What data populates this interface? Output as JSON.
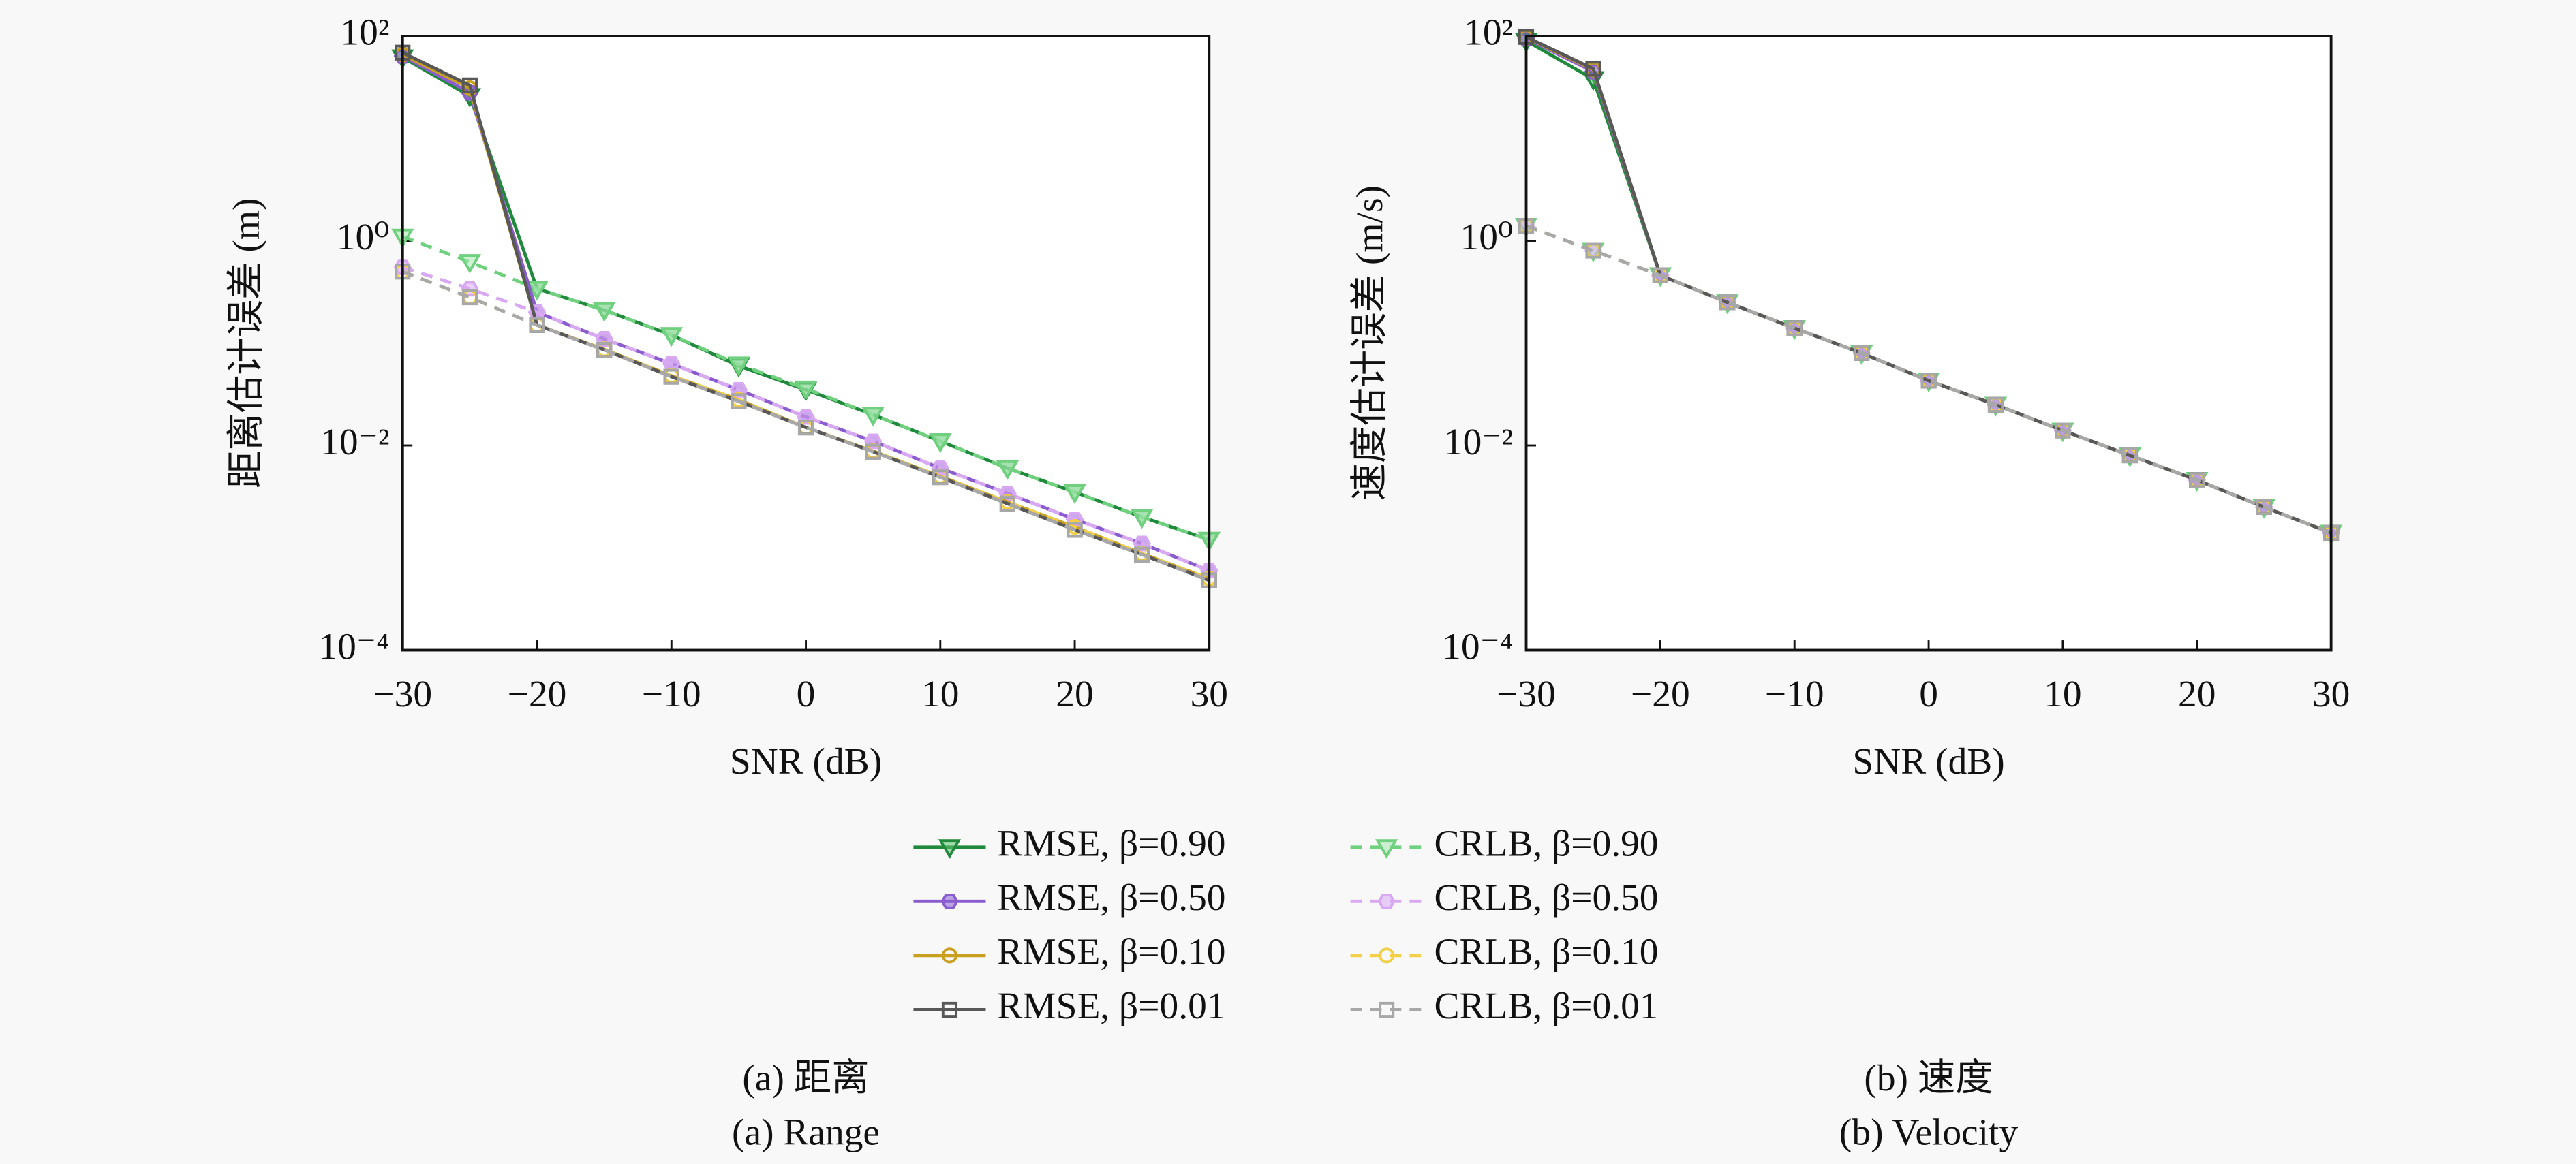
{
  "chart_data": [
    {
      "type": "line",
      "yscale": "log",
      "legend": "below",
      "xlabel": "SNR (dB)",
      "ylabel": "距离估计误差 (m)",
      "caption": {
        "zh": "(a) 距离",
        "en": "(a) Range"
      },
      "x": [
        -30,
        -25,
        -20,
        -15,
        -10,
        -5,
        0,
        5,
        10,
        15,
        20,
        25,
        30
      ],
      "xlim": [
        -30,
        30
      ],
      "xticks": [
        {
          "value": -30,
          "label": "−30"
        },
        {
          "value": -20,
          "label": "−20"
        },
        {
          "value": -10,
          "label": "−10"
        },
        0,
        10,
        20,
        30
      ],
      "ylim": [
        0.0001,
        100
      ],
      "yticks": [
        {
          "value": 0.0001,
          "label": "10⁻⁴"
        },
        {
          "value": 0.01,
          "label": "10⁻²"
        },
        {
          "value": 1,
          "label": "10⁰"
        },
        {
          "value": 100,
          "label": "10²"
        }
      ],
      "series": [
        {
          "name": "RMSE, β=0.90",
          "color": "#1f8a3c",
          "fill": "#5cc26e",
          "marker": "triangle",
          "dashed": false,
          "values": [
            62,
            26,
            0.34,
            0.21,
            0.12,
            0.06,
            0.035,
            0.02,
            0.011,
            0.006,
            0.0035,
            0.002,
            0.0012
          ]
        },
        {
          "name": "CRLB, β=0.90",
          "color": "#6fd07e",
          "fill": "#a8e8b0",
          "marker": "triangle",
          "dashed": true,
          "values": [
            1.1,
            0.62,
            0.34,
            0.21,
            0.12,
            0.062,
            0.036,
            0.02,
            0.011,
            0.006,
            0.0035,
            0.002,
            0.0012
          ]
        },
        {
          "name": "RMSE, β=0.50",
          "color": "#8a5cd0",
          "fill": "#8a5cd0",
          "marker": "hexagon",
          "dashed": false,
          "values": [
            64,
            28,
            0.2,
            0.11,
            0.063,
            0.035,
            0.019,
            0.011,
            0.006,
            0.0034,
            0.0019,
            0.0011,
            0.0006
          ]
        },
        {
          "name": "CRLB, β=0.50",
          "color": "#d9a8f2",
          "fill": "#d9a8f2",
          "marker": "hexagon",
          "dashed": true,
          "values": [
            0.55,
            0.34,
            0.2,
            0.11,
            0.063,
            0.035,
            0.019,
            0.011,
            0.006,
            0.0034,
            0.0019,
            0.0011,
            0.0006
          ]
        },
        {
          "name": "RMSE, β=0.10",
          "color": "#c9a020",
          "fill": "none",
          "marker": "circle",
          "dashed": false,
          "values": [
            66,
            31,
            0.15,
            0.087,
            0.048,
            0.028,
            0.015,
            0.0088,
            0.005,
            0.0028,
            0.0016,
            0.00088,
            0.0005
          ]
        },
        {
          "name": "CRLB, β=0.10",
          "color": "#f2d048",
          "fill": "none",
          "marker": "circle",
          "dashed": true,
          "values": [
            0.5,
            0.28,
            0.15,
            0.087,
            0.048,
            0.028,
            0.015,
            0.0088,
            0.005,
            0.0028,
            0.0016,
            0.00088,
            0.0005
          ]
        },
        {
          "name": "RMSE, β=0.01",
          "color": "#585858",
          "fill": "none",
          "marker": "square",
          "dashed": false,
          "values": [
            69,
            33,
            0.15,
            0.086,
            0.047,
            0.027,
            0.015,
            0.0087,
            0.0049,
            0.0027,
            0.0015,
            0.00086,
            0.00048
          ]
        },
        {
          "name": "CRLB, β=0.01",
          "color": "#a8a8a8",
          "fill": "none",
          "marker": "square",
          "dashed": true,
          "values": [
            0.5,
            0.28,
            0.15,
            0.086,
            0.047,
            0.027,
            0.015,
            0.0087,
            0.0049,
            0.0027,
            0.0015,
            0.00086,
            0.00048
          ]
        }
      ]
    },
    {
      "type": "line",
      "yscale": "log",
      "xlabel": "SNR (dB)",
      "ylabel": "速度估计误差 (m/s)",
      "caption": {
        "zh": "(b) 速度",
        "en": "(b) Velocity"
      },
      "x": [
        -30,
        -25,
        -20,
        -15,
        -10,
        -5,
        0,
        5,
        10,
        15,
        20,
        25,
        30
      ],
      "xlim": [
        -30,
        30
      ],
      "xticks": [
        {
          "value": -30,
          "label": "−30"
        },
        {
          "value": -20,
          "label": "−20"
        },
        {
          "value": -10,
          "label": "−10"
        },
        0,
        10,
        20,
        30
      ],
      "ylim": [
        0.0001,
        100
      ],
      "yticks": [
        {
          "value": 0.0001,
          "label": "10⁻⁴"
        },
        {
          "value": 0.01,
          "label": "10⁻²"
        },
        {
          "value": 1,
          "label": "10⁰"
        },
        {
          "value": 100,
          "label": "10²"
        }
      ],
      "series": [
        {
          "color": "#1f8a3c",
          "fill": "#5cc26e",
          "marker": "triangle",
          "dashed": false,
          "values": [
            90,
            38,
            0.46,
            0.25,
            0.14,
            0.08,
            0.043,
            0.025,
            0.014,
            0.008,
            0.0046,
            0.0025,
            0.0014
          ]
        },
        {
          "color": "#6fd07e",
          "fill": "#a8e8b0",
          "marker": "triangle",
          "dashed": true,
          "values": [
            1.4,
            0.8,
            0.46,
            0.25,
            0.14,
            0.08,
            0.043,
            0.025,
            0.014,
            0.008,
            0.0046,
            0.0025,
            0.0014
          ]
        },
        {
          "color": "#8a5cd0",
          "fill": "#8a5cd0",
          "marker": "hexagon",
          "dashed": false,
          "values": [
            95,
            45,
            0.46,
            0.25,
            0.14,
            0.08,
            0.043,
            0.025,
            0.014,
            0.008,
            0.0046,
            0.0025,
            0.0014
          ]
        },
        {
          "color": "#d9a8f2",
          "fill": "#d9a8f2",
          "marker": "hexagon",
          "dashed": true,
          "values": [
            1.4,
            0.8,
            0.46,
            0.25,
            0.14,
            0.08,
            0.043,
            0.025,
            0.014,
            0.008,
            0.0046,
            0.0025,
            0.0014
          ]
        },
        {
          "color": "#c9a020",
          "fill": "none",
          "marker": "circle",
          "dashed": false,
          "values": [
            97,
            47,
            0.46,
            0.25,
            0.14,
            0.08,
            0.043,
            0.025,
            0.014,
            0.008,
            0.0046,
            0.0025,
            0.0014
          ]
        },
        {
          "color": "#f2d048",
          "fill": "none",
          "marker": "circle",
          "dashed": true,
          "values": [
            1.4,
            0.8,
            0.46,
            0.25,
            0.14,
            0.08,
            0.043,
            0.025,
            0.014,
            0.008,
            0.0046,
            0.0025,
            0.0014
          ]
        },
        {
          "color": "#585858",
          "fill": "none",
          "marker": "square",
          "dashed": false,
          "values": [
            98,
            48,
            0.46,
            0.25,
            0.14,
            0.08,
            0.043,
            0.025,
            0.014,
            0.008,
            0.0046,
            0.0025,
            0.0014
          ]
        },
        {
          "color": "#a8a8a8",
          "fill": "none",
          "marker": "square",
          "dashed": true,
          "values": [
            1.4,
            0.8,
            0.46,
            0.25,
            0.14,
            0.08,
            0.043,
            0.025,
            0.014,
            0.008,
            0.0046,
            0.0025,
            0.0014
          ]
        }
      ]
    }
  ]
}
